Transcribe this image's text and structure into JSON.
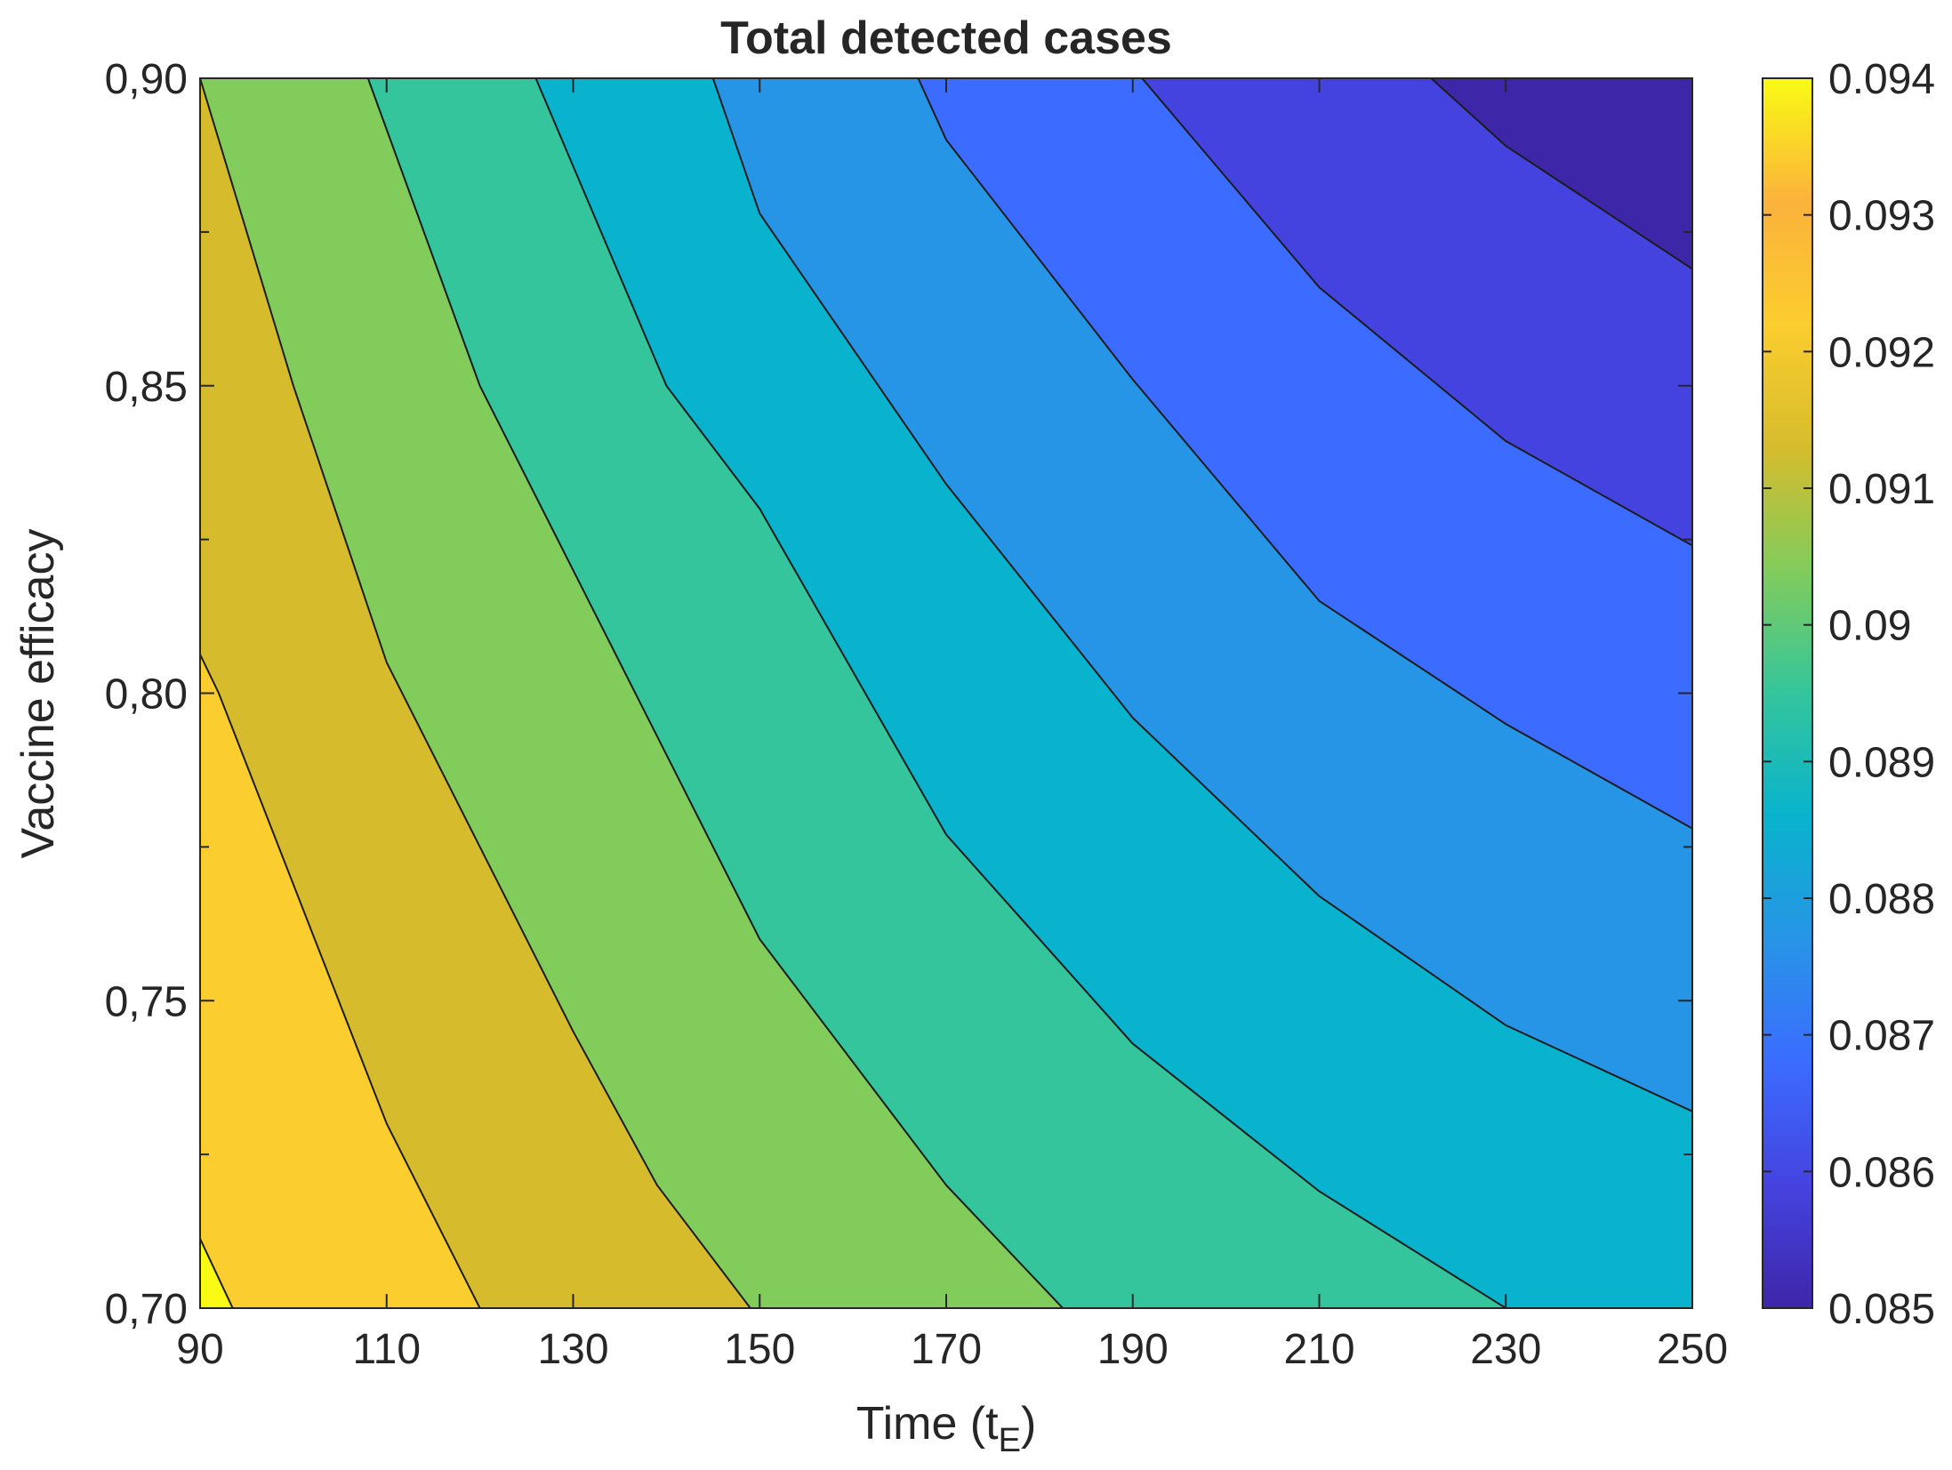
{
  "chart_data": {
    "type": "contour",
    "title": "Total detected cases",
    "xlabel": {
      "main": "Time (t",
      "sub": "E",
      "close": ")"
    },
    "ylabel": "Vaccine efficacy",
    "xlim": [
      90,
      250
    ],
    "ylim": [
      0.7,
      0.9
    ],
    "x_ticks": [
      90,
      110,
      130,
      150,
      170,
      190,
      210,
      230,
      250
    ],
    "x_tick_labels": [
      "90",
      "110",
      "130",
      "150",
      "170",
      "190",
      "210",
      "230",
      "250"
    ],
    "y_ticks": [
      0.7,
      0.75,
      0.8,
      0.85,
      0.9
    ],
    "y_tick_labels": [
      "0,70",
      "0,75",
      "0,80",
      "0,85",
      "0,90"
    ],
    "colorbar": {
      "range": [
        0.085,
        0.094
      ],
      "ticks": [
        0.094,
        0.093,
        0.092,
        0.091,
        0.09,
        0.089,
        0.088,
        0.087,
        0.086,
        0.085
      ],
      "tick_labels": [
        "0.094",
        "0.093",
        "0.092",
        "0.091",
        "0.09",
        "0.089",
        "0.088",
        "0.087",
        "0.086",
        "0.085"
      ],
      "colormap": "parula"
    },
    "contour_levels": [
      0.085,
      0.086,
      0.087,
      0.088,
      0.089,
      0.09,
      0.091,
      0.092,
      0.093,
      0.094
    ],
    "level_colors": [
      "#3e26a8",
      "#4543e0",
      "#3b6cff",
      "#2795e6",
      "#09b3cd",
      "#34c59c",
      "#82cc5c",
      "#d6bc2c",
      "#fbcd2e",
      "#f9fb15"
    ],
    "contour_lines": [
      {
        "level": 0.0935,
        "points": [
          [
            90,
            0.7113
          ],
          [
            93.5,
            0.7
          ]
        ]
      },
      {
        "level": 0.093,
        "points": [
          [
            90,
            0.8063
          ],
          [
            92,
            0.8
          ],
          [
            110,
            0.73
          ],
          [
            120,
            0.7
          ]
        ]
      },
      {
        "level": 0.092,
        "points": [
          [
            90,
            0.9
          ],
          [
            100,
            0.85
          ],
          [
            110,
            0.805
          ],
          [
            130,
            0.745
          ],
          [
            139,
            0.72
          ],
          [
            149,
            0.7
          ]
        ]
      },
      {
        "level": 0.091,
        "points": [
          [
            108,
            0.9
          ],
          [
            120,
            0.85
          ],
          [
            130,
            0.82
          ],
          [
            150,
            0.76
          ],
          [
            170,
            0.72
          ],
          [
            182.5,
            0.7
          ]
        ]
      },
      {
        "level": 0.09,
        "points": [
          [
            126,
            0.9
          ],
          [
            140,
            0.85
          ],
          [
            150,
            0.83
          ],
          [
            170,
            0.777
          ],
          [
            190,
            0.743
          ],
          [
            210,
            0.719
          ],
          [
            230,
            0.7
          ]
        ]
      },
      {
        "level": 0.089,
        "points": [
          [
            145,
            0.9
          ],
          [
            150,
            0.878
          ],
          [
            170,
            0.834
          ],
          [
            190,
            0.796
          ],
          [
            210,
            0.767
          ],
          [
            230,
            0.746
          ],
          [
            250,
            0.732
          ]
        ]
      },
      {
        "level": 0.088,
        "points": [
          [
            167,
            0.9
          ],
          [
            170,
            0.89
          ],
          [
            190,
            0.851
          ],
          [
            210,
            0.815
          ],
          [
            230,
            0.795
          ],
          [
            250,
            0.778
          ]
        ]
      },
      {
        "level": 0.087,
        "points": [
          [
            191,
            0.9
          ],
          [
            210,
            0.866
          ],
          [
            230,
            0.841
          ],
          [
            250,
            0.824
          ]
        ]
      },
      {
        "level": 0.086,
        "points": [
          [
            222,
            0.9
          ],
          [
            230,
            0.889
          ],
          [
            250,
            0.869
          ]
        ]
      }
    ]
  }
}
